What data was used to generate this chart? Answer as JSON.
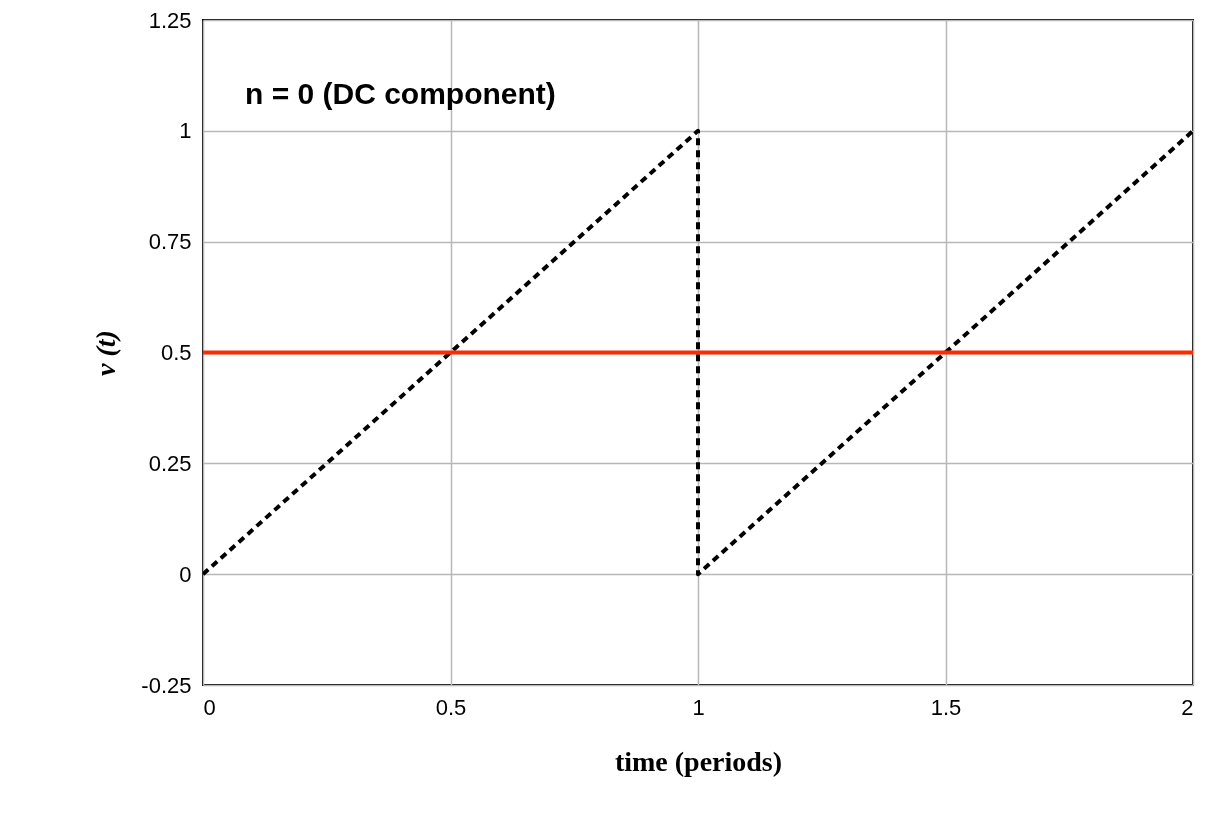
{
  "chart_data": {
    "type": "line",
    "xlabel": "time (periods)",
    "ylabel": "v (t)",
    "annotations": [
      "n = 0 (DC component)"
    ],
    "xlim": [
      0,
      2
    ],
    "xticks": [
      0,
      0.5,
      1,
      1.5,
      2
    ],
    "ylim": [
      -0.25,
      1.25
    ],
    "yticks": [
      -0.25,
      0,
      0.25,
      0.5,
      0.75,
      1,
      1.25
    ],
    "grid": true,
    "marker": "none",
    "series": [
      {
        "color": "#000000",
        "line_style": "dashed",
        "x": [
          0,
          1,
          1,
          2
        ],
        "values": [
          0,
          1,
          0,
          1
        ]
      },
      {
        "color": "#ff2a00",
        "line_style": "solid",
        "x": [
          0,
          2
        ],
        "values": [
          0.5,
          0.5
        ]
      }
    ]
  }
}
